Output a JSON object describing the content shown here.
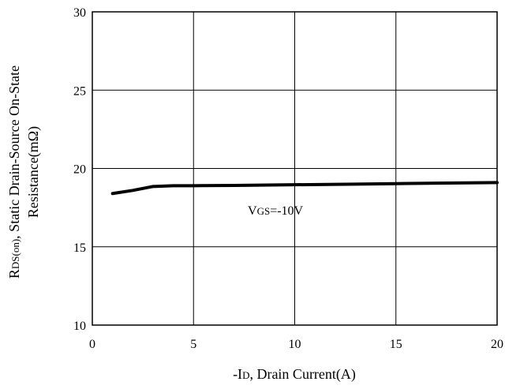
{
  "chart_data": {
    "type": "line",
    "xlabel": "-ID, Drain Current(A)",
    "xlabel_parts": {
      "prefix": "-I",
      "sub": "D",
      "rest": ", Drain Current(A)"
    },
    "ylabel_line1": "RDS(on), Static Drain-Source On-State",
    "ylabel_line1_parts": {
      "main": "R",
      "sub": "DS(on)",
      "rest": ", Static Drain-Source On-State"
    },
    "ylabel_line2": "Resistance(mΩ)",
    "xlim": [
      0,
      20
    ],
    "ylim": [
      10,
      30
    ],
    "x_ticks": [
      0,
      5,
      10,
      15,
      20
    ],
    "y_ticks": [
      10,
      15,
      20,
      25,
      30
    ],
    "grid": true,
    "annotation": "VGS=-10V",
    "annotation_parts": {
      "main": "V",
      "sub": "GS",
      "rest": "=-10V"
    },
    "series": [
      {
        "x": [
          1,
          2,
          3,
          4,
          5,
          7,
          10,
          13,
          15,
          17,
          20
        ],
        "y": [
          18.4,
          18.6,
          18.85,
          18.9,
          18.9,
          18.92,
          18.96,
          19.0,
          19.03,
          19.06,
          19.1
        ],
        "color": "#000000"
      }
    ]
  }
}
